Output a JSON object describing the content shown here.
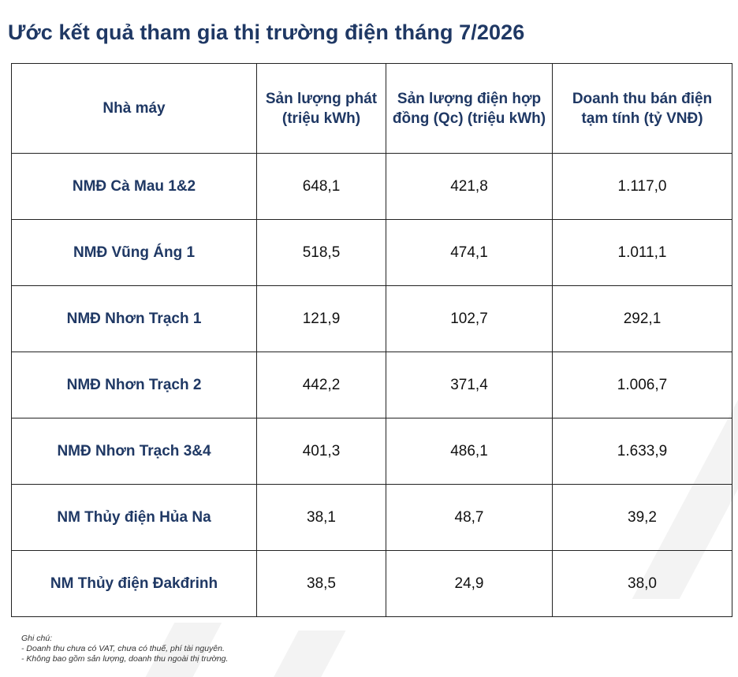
{
  "title": "Ước kết quả tham gia thị trường điện tháng 7/2026",
  "table": {
    "headers": [
      "Nhà máy",
      "Sản lượng phát (triệu kWh)",
      "Sản lượng điện hợp đồng (Qc) (triệu kWh)",
      "Doanh thu bán điện tạm tính (tỷ VNĐ)"
    ],
    "rows": [
      [
        "NMĐ Cà Mau 1&2",
        "648,1",
        "421,8",
        "1.117,0"
      ],
      [
        "NMĐ Vũng Áng 1",
        "518,5",
        "474,1",
        "1.011,1"
      ],
      [
        "NMĐ Nhơn Trạch 1",
        "121,9",
        "102,7",
        "292,1"
      ],
      [
        "NMĐ Nhơn Trạch 2",
        "442,2",
        "371,4",
        "1.006,7"
      ],
      [
        "NMĐ Nhơn Trạch 3&4",
        "401,3",
        "486,1",
        "1.633,9"
      ],
      [
        "NM Thủy điện Hủa Na",
        "38,1",
        "48,7",
        "39,2"
      ],
      [
        "NM Thủy điện Đakđrinh",
        "38,5",
        "24,9",
        "38,0"
      ]
    ]
  },
  "notes": {
    "heading": "Ghi chú:",
    "items": [
      "- Doanh thu chưa có VAT, chưa có thuế, phí tài nguyên.",
      "- Không bao gồm sản lượng, doanh thu ngoài thị trường."
    ]
  }
}
